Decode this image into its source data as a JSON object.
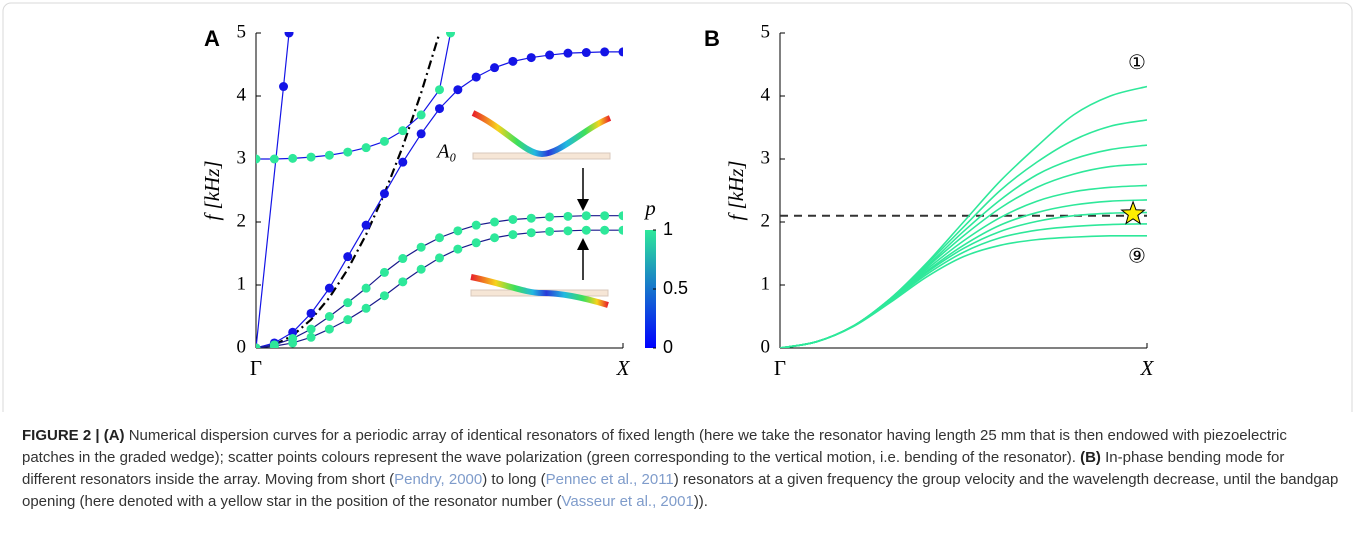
{
  "chart_data": [
    {
      "type": "line",
      "panel": "A",
      "ylabel": "f [kHz]",
      "xlim": [
        0,
        1
      ],
      "xticks": [
        {
          "value": 0,
          "label": "Γ"
        },
        {
          "value": 1,
          "label": "X"
        }
      ],
      "ylim": [
        0,
        5
      ],
      "yticks": [
        0,
        1,
        2,
        3,
        4,
        5
      ],
      "grid": false,
      "annotations": [
        "A₀"
      ],
      "colorbar": {
        "label": "p",
        "lim": [
          0,
          1
        ],
        "ticks": [
          0,
          0.5,
          1
        ],
        "colors": [
          "#0000ff",
          "#2ee89a"
        ]
      },
      "series": [
        {
          "color": "#000000",
          "line_style": "dashdot",
          "markers": false,
          "x": [
            0,
            0.05,
            0.1,
            0.15,
            0.2,
            0.25,
            0.3,
            0.35,
            0.4,
            0.45,
            0.5
          ],
          "values": [
            0,
            0.05,
            0.2,
            0.45,
            0.8,
            1.25,
            1.8,
            2.45,
            3.2,
            4.05,
            5.0
          ]
        },
        {
          "color": "#1414e6",
          "line_style": "solid",
          "markers": true,
          "x": [
            0,
            0.075,
            0.09
          ],
          "values": [
            0,
            4.15,
            5.0
          ]
        },
        {
          "color": "#1414e6",
          "line_style": "solid",
          "markers": true,
          "x": [
            0,
            0.05,
            0.1,
            0.15,
            0.2,
            0.25,
            0.3,
            0.35,
            0.4,
            0.45,
            0.5,
            0.55,
            0.6,
            0.65,
            0.7,
            0.75,
            0.8,
            0.85,
            0.9,
            0.95,
            1
          ],
          "values": [
            0,
            0.08,
            0.25,
            0.55,
            0.95,
            1.45,
            1.95,
            2.45,
            2.95,
            3.4,
            3.8,
            4.1,
            4.3,
            4.45,
            4.55,
            4.61,
            4.65,
            4.68,
            4.69,
            4.7,
            4.7
          ]
        },
        {
          "color": "#2ee89a",
          "line_color": "#1414e6",
          "line_style": "solid",
          "markers": true,
          "x": [
            0,
            0.05,
            0.1,
            0.15,
            0.2,
            0.25,
            0.3,
            0.35,
            0.4,
            0.45,
            0.5,
            0.53
          ],
          "values": [
            3.0,
            3.0,
            3.01,
            3.03,
            3.06,
            3.11,
            3.18,
            3.28,
            3.45,
            3.7,
            4.1,
            5.0
          ]
        },
        {
          "color": "#2ee89a",
          "line_color": "#1a1a8c",
          "line_style": "solid",
          "markers": true,
          "x": [
            0,
            0.05,
            0.1,
            0.15,
            0.2,
            0.25,
            0.3,
            0.35,
            0.4,
            0.45,
            0.5,
            0.55,
            0.6,
            0.65,
            0.7,
            0.75,
            0.8,
            0.85,
            0.9,
            0.95,
            1
          ],
          "values": [
            0,
            0.05,
            0.15,
            0.3,
            0.5,
            0.72,
            0.95,
            1.2,
            1.42,
            1.6,
            1.75,
            1.86,
            1.95,
            2.0,
            2.04,
            2.06,
            2.08,
            2.09,
            2.1,
            2.1,
            2.1
          ]
        },
        {
          "color": "#2ee89a",
          "line_color": "#1a1a8c",
          "line_style": "solid",
          "markers": true,
          "x": [
            0,
            0.05,
            0.1,
            0.15,
            0.2,
            0.25,
            0.3,
            0.35,
            0.4,
            0.45,
            0.5,
            0.55,
            0.6,
            0.65,
            0.7,
            0.75,
            0.8,
            0.85,
            0.9,
            0.95,
            1
          ],
          "values": [
            0,
            0.03,
            0.08,
            0.17,
            0.3,
            0.45,
            0.63,
            0.83,
            1.05,
            1.25,
            1.43,
            1.57,
            1.67,
            1.75,
            1.8,
            1.83,
            1.85,
            1.86,
            1.87,
            1.87,
            1.87
          ]
        }
      ]
    },
    {
      "type": "line",
      "panel": "B",
      "ylabel": "f [kHz]",
      "xlim": [
        0,
        1
      ],
      "xticks": [
        {
          "value": 0,
          "label": "Γ"
        },
        {
          "value": 1,
          "label": "X"
        }
      ],
      "ylim": [
        0,
        5
      ],
      "yticks": [
        0,
        1,
        2,
        3,
        4,
        5
      ],
      "grid": false,
      "annotations": [
        "①",
        "⑨"
      ],
      "hline": 2.1,
      "hline_color": "#333333",
      "marker": {
        "x": 0.962,
        "y": 2.13,
        "color": "#ffee00"
      },
      "x": [
        0,
        0.1,
        0.2,
        0.3,
        0.4,
        0.5,
        0.6,
        0.7,
        0.8,
        0.9,
        1
      ],
      "series": [
        {
          "color": "#2ee89a",
          "values": [
            0,
            0.1,
            0.35,
            0.78,
            1.35,
            2.0,
            2.65,
            3.2,
            3.7,
            4.0,
            4.15
          ]
        },
        {
          "color": "#2ee89a",
          "values": [
            0,
            0.1,
            0.35,
            0.78,
            1.33,
            1.92,
            2.5,
            2.95,
            3.3,
            3.52,
            3.62
          ]
        },
        {
          "color": "#2ee89a",
          "values": [
            0,
            0.1,
            0.35,
            0.78,
            1.3,
            1.85,
            2.35,
            2.75,
            3.0,
            3.15,
            3.22
          ]
        },
        {
          "color": "#2ee89a",
          "values": [
            0,
            0.1,
            0.35,
            0.77,
            1.28,
            1.78,
            2.22,
            2.55,
            2.76,
            2.88,
            2.92
          ]
        },
        {
          "color": "#2ee89a",
          "values": [
            0,
            0.1,
            0.35,
            0.76,
            1.25,
            1.7,
            2.07,
            2.33,
            2.48,
            2.55,
            2.58
          ]
        },
        {
          "color": "#2ee89a",
          "values": [
            0,
            0.1,
            0.35,
            0.75,
            1.22,
            1.63,
            1.95,
            2.15,
            2.27,
            2.33,
            2.35
          ]
        },
        {
          "color": "#2ee89a",
          "values": [
            0,
            0.1,
            0.35,
            0.75,
            1.2,
            1.58,
            1.85,
            2.01,
            2.1,
            2.14,
            2.15
          ]
        },
        {
          "color": "#2ee89a",
          "values": [
            0,
            0.1,
            0.35,
            0.74,
            1.17,
            1.52,
            1.75,
            1.87,
            1.93,
            1.96,
            1.97
          ]
        },
        {
          "color": "#2ee89a",
          "values": [
            0,
            0.1,
            0.34,
            0.72,
            1.13,
            1.45,
            1.63,
            1.72,
            1.76,
            1.78,
            1.78
          ]
        }
      ]
    }
  ],
  "caption": [
    {
      "text": "FIGURE 2 | (A)",
      "bold": true
    },
    {
      "text": " Numerical dispersion curves for a periodic array of identical resonators of fixed length (here we take the resonator having length 25 mm that is then endowed with piezoelectric patches in the graded wedge); scatter points colours represent the wave polarization (green corresponding to the vertical motion, i.e. bending of the resonator). "
    },
    {
      "text": "(B)",
      "bold": true
    },
    {
      "text": " In-phase bending mode for different resonators inside the array. Moving from short ("
    },
    {
      "text": "Pendry, 2000",
      "ref": true
    },
    {
      "text": ") to long ("
    },
    {
      "text": "Pennec et al., 2011",
      "ref": true
    },
    {
      "text": ") resonators at a given frequency the group velocity and the wavelength decrease, until the bandgap opening (here denoted with a yellow star in the position of the resonator number ("
    },
    {
      "text": "Vasseur et al., 2001",
      "ref": true
    },
    {
      "text": "))."
    }
  ]
}
